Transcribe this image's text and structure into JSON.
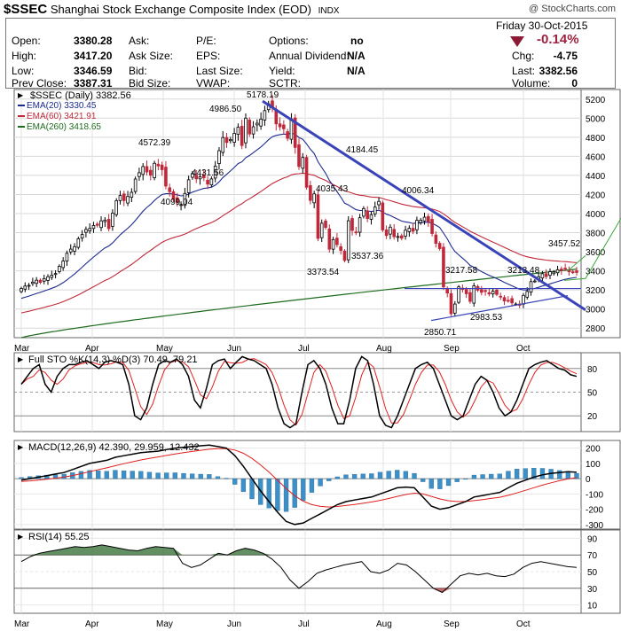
{
  "header": {
    "symbol": "$SSEC",
    "name": "Shanghai Stock Exchange Composite Index (EOD)",
    "exchange": "INDX",
    "watermark": "@ StockCharts.com",
    "date": "Friday  30-Oct-2015",
    "change_pct": "-0.14%",
    "rows": [
      {
        "label": "Open:",
        "value": "3380.28"
      },
      {
        "label": "High:",
        "value": "3417.20"
      },
      {
        "label": "Low:",
        "value": "3346.59"
      },
      {
        "label": "Prev Close:",
        "value": "3387.31"
      }
    ],
    "col2": [
      "Ask:",
      "Ask Size:",
      "Bid:",
      "Bid Size:"
    ],
    "col3": [
      "P/E:",
      "EPS:",
      "Last Size:",
      "VWAP:"
    ],
    "col4": [
      {
        "label": "Options:",
        "value": "no"
      },
      {
        "label": "Annual Dividend:",
        "value": "N/A"
      },
      {
        "label": "Yield:",
        "value": "N/A"
      },
      {
        "label": "SCTR:",
        "value": ""
      }
    ],
    "col5": [
      {
        "label": "Chg:",
        "value": "-4.75"
      },
      {
        "label": "Last:",
        "value": "3382.56"
      },
      {
        "label": "Volume:",
        "value": "0"
      }
    ]
  },
  "chart_data": [
    {
      "type": "candlestick",
      "legend": [
        {
          "name": "$SSEC (Daily) 3382.56",
          "color": "#000000"
        },
        {
          "name": "EMA(20) 3330.45",
          "color": "#1c2a8f"
        },
        {
          "name": "EMA(60) 3421.91",
          "color": "#c0283a"
        },
        {
          "name": "EMA(260) 3418.65",
          "color": "#1e6b1e"
        }
      ],
      "ylim": [
        2700,
        5300
      ],
      "y_ticks": [
        2800,
        3000,
        3200,
        3400,
        3600,
        3800,
        4000,
        4200,
        4400,
        4600,
        4800,
        5000,
        5200
      ],
      "x_ticks": [
        "Mar",
        "Apr",
        "May",
        "Jun",
        "Jul",
        "Aug",
        "Sep",
        "Oct"
      ],
      "annotations": [
        "5178.19",
        "4986.50",
        "4572.39",
        "4431.56",
        "4099.04",
        "4184.45",
        "4035.43",
        "4006.34",
        "3537.36",
        "3373.54",
        "3457.52",
        "3217.58",
        "3213.48",
        "2983.53",
        "2850.71"
      ],
      "series": {
        "close": [
          3215,
          3241,
          3248,
          3282,
          3302,
          3279,
          3319,
          3338,
          3355,
          3372,
          3448,
          3502,
          3584,
          3628,
          3654,
          3736,
          3781,
          3834,
          3844,
          3875,
          3877,
          3924,
          3932,
          3843,
          4005,
          4136,
          4189,
          4136,
          4179,
          4223,
          4362,
          4428,
          4493,
          4436,
          4402,
          4527,
          4499,
          4460,
          4288,
          4229,
          4149,
          4116,
          4094,
          4211,
          4354,
          4420,
          4364,
          4385,
          4375,
          4309,
          4363,
          4497,
          4659,
          4797,
          4745,
          4776,
          4840,
          4905,
          4713,
          5000,
          4834,
          4910,
          4947,
          4990,
          5079,
          5150,
          5113,
          4940,
          4909,
          4888,
          4788,
          4992,
          4693,
          4493,
          4588,
          4276,
          4138,
          4206,
          3740,
          3899,
          3855,
          3627,
          3728,
          3675,
          3614,
          3509,
          3925,
          3823,
          3804,
          3957,
          4053,
          3948,
          3989,
          4068,
          4128,
          3829,
          3770,
          3858,
          3758,
          3760,
          3742,
          3826,
          3846,
          3815,
          3929,
          3931,
          3962,
          3916,
          3791,
          3688,
          3633,
          3232,
          3168,
          2951,
          3052,
          3232,
          3205,
          3160,
          3080,
          3243,
          3197,
          3175,
          3184,
          3158,
          3186,
          3153,
          3126,
          3085,
          3091,
          3064,
          3052,
          3039,
          3143,
          3184,
          3287,
          3294,
          3338,
          3370,
          3340,
          3391,
          3387,
          3412,
          3407,
          3425,
          3390,
          3387,
          3383
        ],
        "ema20_end": 3330.45,
        "ema60_end": 3421.91,
        "ema260_end": 3418.65
      },
      "trendlines": [
        {
          "from": [
            "Jun 12",
            5178
          ],
          "to": [
            "Oct 30",
            3000
          ]
        },
        {
          "from": [
            "Aug 26",
            2880
          ],
          "to": [
            "Oct 30",
            3140
          ]
        }
      ]
    },
    {
      "type": "line",
      "title": "Full STO %K(14,3) %D(3) 70.49, 79.21",
      "series": [
        {
          "name": "%K(14,3)",
          "value": 70.49,
          "color": "#000000"
        },
        {
          "name": "%D(3)",
          "value": 79.21,
          "color": "#e02020"
        }
      ],
      "ylim": [
        0,
        100
      ],
      "y_ticks": [
        20,
        50,
        80
      ]
    },
    {
      "type": "line",
      "title": "MACD(12,26,9) 42.390, 29.959, 12.432",
      "series": [
        {
          "name": "MACD",
          "value": 42.39,
          "color": "#000000"
        },
        {
          "name": "Signal",
          "value": 29.959,
          "color": "#e02020"
        },
        {
          "name": "Histogram",
          "value": 12.432,
          "color": "#3d8fc7"
        }
      ],
      "ylim": [
        -330,
        250
      ],
      "y_ticks": [
        -300,
        -200,
        -100,
        0,
        100,
        200
      ]
    },
    {
      "type": "line",
      "title": "RSI(14) 55.25",
      "series": [
        {
          "name": "RSI(14)",
          "value": 55.25,
          "color": "#000000"
        }
      ],
      "ylim": [
        0,
        100
      ],
      "y_ticks": [
        10,
        30,
        50,
        70,
        90
      ]
    }
  ]
}
